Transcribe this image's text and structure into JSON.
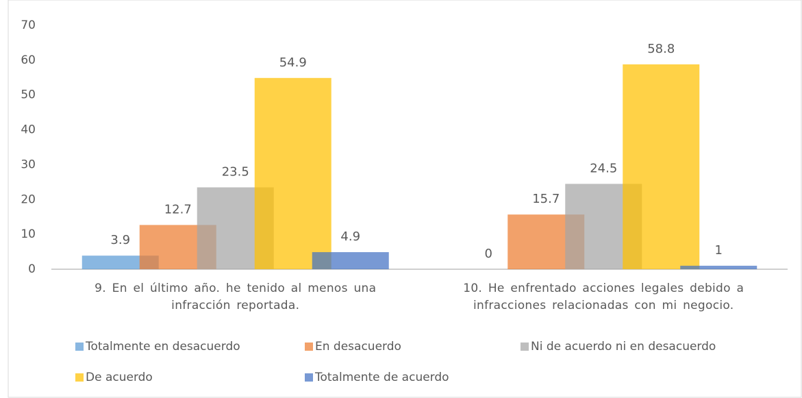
{
  "chart_data": {
    "type": "bar",
    "categories": [
      "9. En el último año. he tenido al menos una infracción reportada.",
      "10. He enfrentado acciones legales debido a infracciones relacionadas con mi negocio."
    ],
    "series": [
      {
        "name": "Totalmente en desacuerdo",
        "color": "#5b9bd5",
        "values": [
          3.9,
          0
        ]
      },
      {
        "name": "En desacuerdo",
        "color": "#ed7d31",
        "values": [
          12.7,
          15.7
        ]
      },
      {
        "name": "Ni de acuerdo ni en desacuerdo",
        "color": "#a5a5a5",
        "values": [
          23.5,
          24.5
        ]
      },
      {
        "name": "De acuerdo",
        "color": "#ffc000",
        "values": [
          54.9,
          58.8
        ]
      },
      {
        "name": "Totalmente de acuerdo",
        "color": "#4472c4",
        "values": [
          4.9,
          1
        ]
      }
    ],
    "ylim": [
      0,
      70
    ],
    "yticks": [
      0,
      10,
      20,
      30,
      40,
      50,
      60,
      70
    ],
    "grid": false,
    "legend": "bottom"
  }
}
